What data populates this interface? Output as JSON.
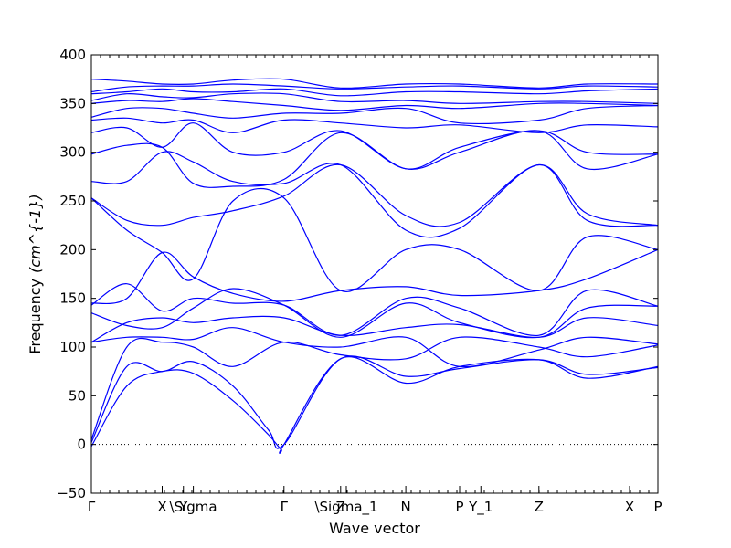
{
  "chart_data": {
    "type": "line",
    "xlabel": "Wave vector",
    "ylabel": "Frequency",
    "ylabel_unit": "(cm^{-1})",
    "ylim": [
      -50,
      400
    ],
    "yticks": [
      -50,
      0,
      50,
      100,
      150,
      200,
      250,
      300,
      350,
      400
    ],
    "xlim": [
      0,
      4.0
    ],
    "path_labels": [
      "Γ",
      "X",
      "Y",
      "\\Sigma",
      "Γ",
      "Z",
      "\\Sigma_1",
      "N",
      "P",
      "Y_1",
      "Z",
      "X",
      "P"
    ],
    "path_positions": [
      0,
      0.5,
      0.65,
      0.72,
      1.36,
      1.76,
      1.8,
      2.22,
      2.6,
      2.75,
      3.16,
      3.8,
      4.0
    ],
    "zero_line": true,
    "series_color": "#0000ff",
    "series": [
      {
        "values": [
          [
            0,
            -2
          ],
          [
            0.25,
            60
          ],
          [
            0.5,
            75
          ],
          [
            0.72,
            73
          ],
          [
            1.0,
            45
          ],
          [
            1.25,
            10
          ],
          [
            1.34,
            -5
          ],
          [
            1.36,
            0
          ],
          [
            1.76,
            88
          ],
          [
            2.22,
            63
          ],
          [
            2.6,
            80
          ],
          [
            3.16,
            87
          ],
          [
            3.5,
            68
          ],
          [
            4.0,
            80
          ]
        ]
      },
      {
        "values": [
          [
            0,
            2
          ],
          [
            0.25,
            80
          ],
          [
            0.5,
            75
          ],
          [
            0.72,
            85
          ],
          [
            1.0,
            60
          ],
          [
            1.25,
            15
          ],
          [
            1.36,
            0
          ],
          [
            1.76,
            88
          ],
          [
            2.22,
            70
          ],
          [
            2.6,
            78
          ],
          [
            3.16,
            87
          ],
          [
            3.5,
            72
          ],
          [
            4.0,
            79
          ]
        ]
      },
      {
        "values": [
          [
            0,
            5
          ],
          [
            0.25,
            100
          ],
          [
            0.5,
            105
          ],
          [
            0.72,
            100
          ],
          [
            1.0,
            80
          ],
          [
            1.36,
            105
          ],
          [
            1.76,
            92
          ],
          [
            2.22,
            88
          ],
          [
            2.6,
            110
          ],
          [
            3.16,
            100
          ],
          [
            3.5,
            90
          ],
          [
            4.0,
            102
          ]
        ]
      },
      {
        "values": [
          [
            0,
            105
          ],
          [
            0.25,
            110
          ],
          [
            0.5,
            110
          ],
          [
            0.72,
            108
          ],
          [
            1.0,
            120
          ],
          [
            1.36,
            105
          ],
          [
            1.76,
            100
          ],
          [
            2.22,
            110
          ],
          [
            2.6,
            80
          ],
          [
            3.16,
            97
          ],
          [
            3.5,
            110
          ],
          [
            4.0,
            103
          ]
        ]
      },
      {
        "values": [
          [
            0,
            105
          ],
          [
            0.25,
            125
          ],
          [
            0.5,
            130
          ],
          [
            0.72,
            125
          ],
          [
            1.0,
            130
          ],
          [
            1.36,
            130
          ],
          [
            1.76,
            112
          ],
          [
            2.22,
            120
          ],
          [
            2.6,
            123
          ],
          [
            3.16,
            110
          ],
          [
            3.5,
            130
          ],
          [
            4.0,
            122
          ]
        ]
      },
      {
        "values": [
          [
            0,
            135
          ],
          [
            0.25,
            122
          ],
          [
            0.5,
            120
          ],
          [
            0.72,
            140
          ],
          [
            1.0,
            160
          ],
          [
            1.36,
            143
          ],
          [
            1.76,
            110
          ],
          [
            2.22,
            145
          ],
          [
            2.6,
            125
          ],
          [
            3.16,
            110
          ],
          [
            3.5,
            140
          ],
          [
            4.0,
            142
          ]
        ]
      },
      {
        "values": [
          [
            0,
            143
          ],
          [
            0.25,
            165
          ],
          [
            0.5,
            137
          ],
          [
            0.72,
            150
          ],
          [
            1.0,
            145
          ],
          [
            1.36,
            143
          ],
          [
            1.76,
            112
          ],
          [
            2.22,
            150
          ],
          [
            2.6,
            140
          ],
          [
            3.16,
            112
          ],
          [
            3.5,
            158
          ],
          [
            4.0,
            142
          ]
        ]
      },
      {
        "values": [
          [
            0,
            145
          ],
          [
            0.25,
            150
          ],
          [
            0.5,
            197
          ],
          [
            0.72,
            172
          ],
          [
            1.0,
            155
          ],
          [
            1.36,
            147
          ],
          [
            1.76,
            158
          ],
          [
            2.22,
            162
          ],
          [
            2.6,
            153
          ],
          [
            3.16,
            158
          ],
          [
            3.5,
            170
          ],
          [
            4.0,
            200
          ]
        ]
      },
      {
        "values": [
          [
            0,
            253
          ],
          [
            0.25,
            220
          ],
          [
            0.5,
            197
          ],
          [
            0.72,
            170
          ],
          [
            1.0,
            250
          ],
          [
            1.36,
            253
          ],
          [
            1.76,
            158
          ],
          [
            2.22,
            200
          ],
          [
            2.6,
            200
          ],
          [
            3.16,
            158
          ],
          [
            3.5,
            213
          ],
          [
            4.0,
            200
          ]
        ]
      },
      {
        "values": [
          [
            0,
            253
          ],
          [
            0.25,
            230
          ],
          [
            0.5,
            225
          ],
          [
            0.72,
            233
          ],
          [
            1.0,
            240
          ],
          [
            1.36,
            255
          ],
          [
            1.76,
            287
          ],
          [
            2.22,
            235
          ],
          [
            2.6,
            228
          ],
          [
            3.16,
            287
          ],
          [
            3.5,
            237
          ],
          [
            4.0,
            225
          ]
        ]
      },
      {
        "values": [
          [
            0,
            270
          ],
          [
            0.25,
            270
          ],
          [
            0.5,
            300
          ],
          [
            0.72,
            290
          ],
          [
            1.0,
            270
          ],
          [
            1.36,
            268
          ],
          [
            1.76,
            287
          ],
          [
            2.22,
            220
          ],
          [
            2.6,
            222
          ],
          [
            3.16,
            287
          ],
          [
            3.5,
            230
          ],
          [
            4.0,
            225
          ]
        ]
      },
      {
        "values": [
          [
            0,
            298
          ],
          [
            0.25,
            307
          ],
          [
            0.5,
            305
          ],
          [
            0.72,
            268
          ],
          [
            1.0,
            265
          ],
          [
            1.36,
            272
          ],
          [
            1.76,
            320
          ],
          [
            2.22,
            283
          ],
          [
            2.6,
            300
          ],
          [
            3.16,
            322
          ],
          [
            3.5,
            283
          ],
          [
            4.0,
            298
          ]
        ]
      },
      {
        "values": [
          [
            0,
            320
          ],
          [
            0.25,
            325
          ],
          [
            0.5,
            305
          ],
          [
            0.72,
            330
          ],
          [
            1.0,
            300
          ],
          [
            1.36,
            300
          ],
          [
            1.76,
            322
          ],
          [
            2.22,
            283
          ],
          [
            2.6,
            305
          ],
          [
            3.16,
            322
          ],
          [
            3.5,
            300
          ],
          [
            4.0,
            298
          ]
        ]
      },
      {
        "values": [
          [
            0,
            333
          ],
          [
            0.25,
            335
          ],
          [
            0.5,
            330
          ],
          [
            0.72,
            333
          ],
          [
            1.0,
            320
          ],
          [
            1.36,
            333
          ],
          [
            1.76,
            330
          ],
          [
            2.22,
            325
          ],
          [
            2.6,
            328
          ],
          [
            3.16,
            320
          ],
          [
            3.5,
            328
          ],
          [
            4.0,
            326
          ]
        ]
      },
      {
        "values": [
          [
            0,
            336
          ],
          [
            0.25,
            345
          ],
          [
            0.5,
            345
          ],
          [
            0.72,
            340
          ],
          [
            1.0,
            335
          ],
          [
            1.36,
            340
          ],
          [
            1.76,
            340
          ],
          [
            2.22,
            345
          ],
          [
            2.6,
            330
          ],
          [
            3.16,
            333
          ],
          [
            3.5,
            345
          ],
          [
            4.0,
            348
          ]
        ]
      },
      {
        "values": [
          [
            0,
            350
          ],
          [
            0.25,
            353
          ],
          [
            0.5,
            352
          ],
          [
            0.72,
            355
          ],
          [
            1.0,
            352
          ],
          [
            1.36,
            348
          ],
          [
            1.76,
            343
          ],
          [
            2.22,
            348
          ],
          [
            2.6,
            345
          ],
          [
            3.16,
            350
          ],
          [
            3.5,
            350
          ],
          [
            4.0,
            348
          ]
        ]
      },
      {
        "values": [
          [
            0,
            353
          ],
          [
            0.25,
            360
          ],
          [
            0.5,
            357
          ],
          [
            0.72,
            356
          ],
          [
            1.0,
            360
          ],
          [
            1.36,
            360
          ],
          [
            1.76,
            352
          ],
          [
            2.22,
            353
          ],
          [
            2.6,
            350
          ],
          [
            3.16,
            352
          ],
          [
            3.5,
            352
          ],
          [
            4.0,
            350
          ]
        ]
      },
      {
        "values": [
          [
            0,
            360
          ],
          [
            0.25,
            362
          ],
          [
            0.5,
            365
          ],
          [
            0.72,
            362
          ],
          [
            1.0,
            362
          ],
          [
            1.36,
            365
          ],
          [
            1.76,
            358
          ],
          [
            2.22,
            362
          ],
          [
            2.6,
            362
          ],
          [
            3.16,
            360
          ],
          [
            3.5,
            363
          ],
          [
            4.0,
            365
          ]
        ]
      },
      {
        "values": [
          [
            0,
            362
          ],
          [
            0.25,
            367
          ],
          [
            0.5,
            368
          ],
          [
            0.72,
            368
          ],
          [
            1.0,
            370
          ],
          [
            1.36,
            368
          ],
          [
            1.76,
            365
          ],
          [
            2.22,
            367
          ],
          [
            2.6,
            368
          ],
          [
            3.16,
            365
          ],
          [
            3.5,
            368
          ],
          [
            4.0,
            367
          ]
        ]
      },
      {
        "values": [
          [
            0,
            375
          ],
          [
            0.25,
            373
          ],
          [
            0.5,
            370
          ],
          [
            0.72,
            370
          ],
          [
            1.0,
            374
          ],
          [
            1.36,
            375
          ],
          [
            1.76,
            366
          ],
          [
            2.22,
            370
          ],
          [
            2.6,
            370
          ],
          [
            3.16,
            366
          ],
          [
            3.5,
            370
          ],
          [
            4.0,
            370
          ]
        ]
      }
    ]
  }
}
